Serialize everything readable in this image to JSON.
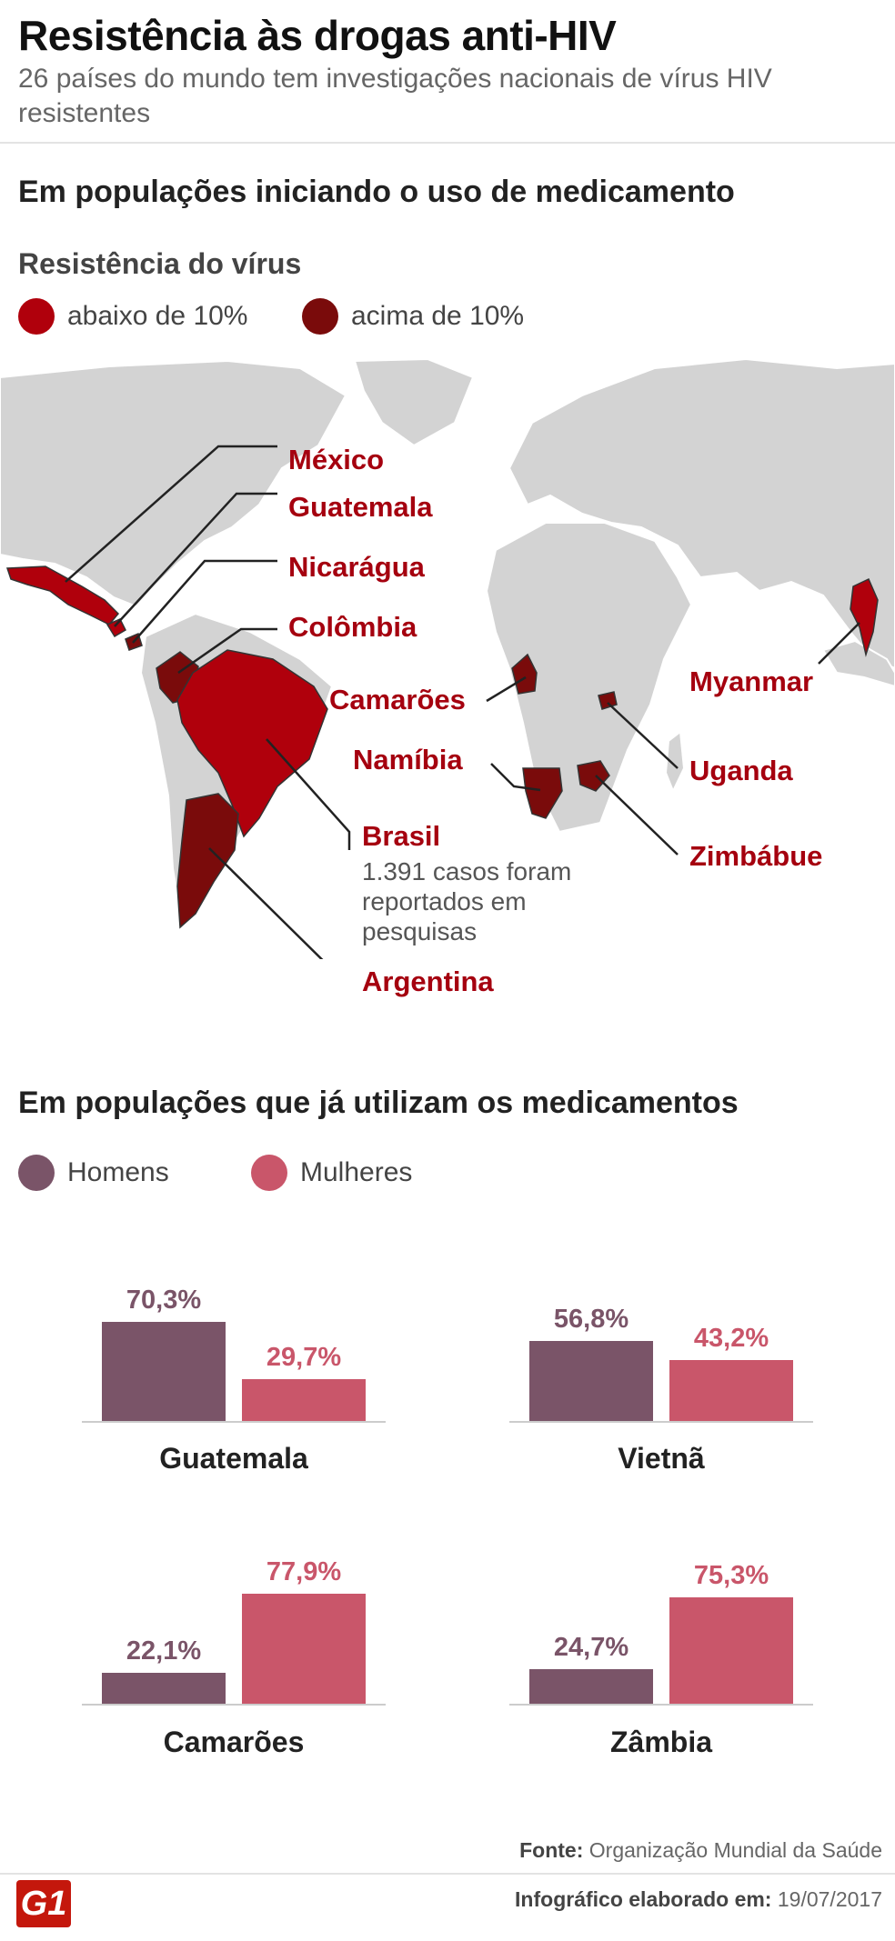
{
  "header": {
    "title": "Resistência às drogas anti-HIV",
    "subtitle": "26 países do mundo tem investigações nacionais de vírus HIV resistentes"
  },
  "section1": {
    "heading": "Em populações iniciando o uso de medicamento",
    "legend_title": "Resistência do vírus",
    "legend": [
      {
        "label": "abaixo de 10%",
        "color": "#b0000c"
      },
      {
        "label": "acima de 10%",
        "color": "#7a0b0b"
      }
    ]
  },
  "map": {
    "land_color": "#d3d3d3",
    "countries": {
      "mexico": "México",
      "guatemala": "Guatemala",
      "nicaragua": "Nicarágua",
      "colombia": "Colômbia",
      "camaroes": "Camarões",
      "namibia": "Namíbia",
      "brasil": "Brasil",
      "brasil_note": "1.391 casos foram reportados em pesquisas",
      "argentina": "Argentina",
      "myanmar": "Myanmar",
      "uganda": "Uganda",
      "zimbabue": "Zimbábue"
    }
  },
  "section2": {
    "heading": "Em populações que já utilizam os medicamentos",
    "legend": [
      {
        "label": "Homens",
        "color": "#7a5468"
      },
      {
        "label": "Mulheres",
        "color": "#c9566a"
      }
    ]
  },
  "chart_data": {
    "type": "bar",
    "title": "Em populações que já utilizam os medicamentos",
    "series_names": [
      "Homens",
      "Mulheres"
    ],
    "colors": {
      "Homens": "#7a5468",
      "Mulheres": "#c9566a"
    },
    "unit": "%",
    "panels": [
      {
        "category": "Guatemala",
        "values": [
          70.3,
          29.7
        ],
        "labels": [
          "70,3%",
          "29,7%"
        ]
      },
      {
        "category": "Vietnã",
        "values": [
          56.8,
          43.2
        ],
        "labels": [
          "56,8%",
          "43,2%"
        ]
      },
      {
        "category": "Camarões",
        "values": [
          22.1,
          77.9
        ],
        "labels": [
          "22,1%",
          "77,9%"
        ]
      },
      {
        "category": "Zâmbia",
        "values": [
          24.7,
          75.3
        ],
        "labels": [
          "24,7%",
          "75,3%"
        ]
      }
    ]
  },
  "footer": {
    "source_label": "Fonte:",
    "source": "Organização Mundial da Saúde",
    "date_label": "Infográfico elaborado em:",
    "date": "19/07/2017",
    "logo": "G1"
  }
}
